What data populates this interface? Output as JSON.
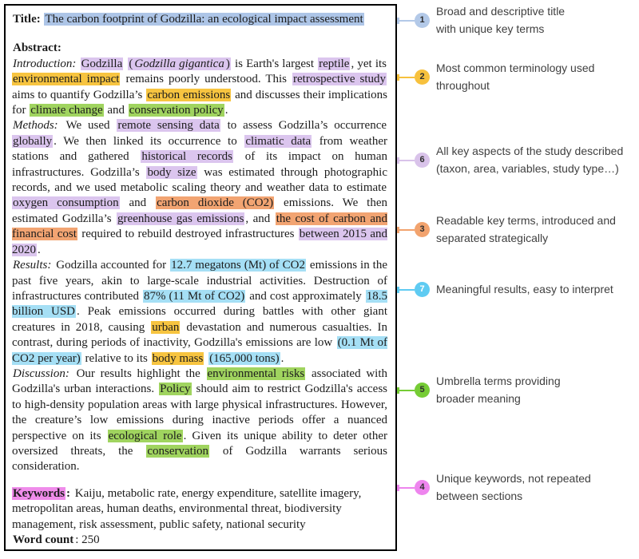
{
  "highlight_colors": {
    "blue": "#adc5e7",
    "purple": "#dbc5ee",
    "yellow": "#f7c440",
    "green": "#a0d45f",
    "orange": "#f2a472",
    "skyblue": "#a5dff5",
    "magenta": "#ef8cea"
  },
  "document": {
    "blocks": [
      {
        "name": "title-line",
        "justify": false,
        "gap": "none",
        "segments": [
          {
            "t": "Title: ",
            "b": true
          },
          {
            "t": "The carbon footprint of Godzilla: an ecological impact assessment",
            "h": "blue"
          }
        ]
      },
      {
        "name": "abstract-heading",
        "justify": false,
        "gap": "md",
        "segments": [
          {
            "t": "Abstract:",
            "b": true
          }
        ]
      },
      {
        "name": "abstract-introduction",
        "gap": "none",
        "segments": [
          {
            "t": "Introduction: ",
            "i": true
          },
          {
            "t": "Godzilla",
            "h": "purple"
          },
          {
            "t": " "
          },
          {
            "t": "(",
            "h": "purple"
          },
          {
            "t": "Godzilla gigantica",
            "h": "purple",
            "i": true
          },
          {
            "t": ")",
            "h": "purple"
          },
          {
            "t": " is Earth's largest "
          },
          {
            "t": "reptile",
            "h": "purple"
          },
          {
            "t": ", yet its "
          },
          {
            "t": "environmental impact",
            "h": "yellow"
          },
          {
            "t": " remains poorly understood. This "
          },
          {
            "t": "retrospective study",
            "h": "purple"
          },
          {
            "t": " aims to quantify Godzilla’s "
          },
          {
            "t": "carbon emissions",
            "h": "yellow"
          },
          {
            "t": " and discusses their implications for "
          },
          {
            "t": "climate change",
            "h": "green"
          },
          {
            "t": " and "
          },
          {
            "t": "conservation policy",
            "h": "green"
          },
          {
            "t": "."
          }
        ]
      },
      {
        "name": "abstract-methods",
        "gap": "none",
        "segments": [
          {
            "t": "Methods: ",
            "i": true
          },
          {
            "t": "We used "
          },
          {
            "t": "remote sensing data",
            "h": "purple"
          },
          {
            "t": " to assess Godzilla’s occurrence "
          },
          {
            "t": "globally",
            "h": "purple"
          },
          {
            "t": ". We then linked its occurrence to "
          },
          {
            "t": "climatic data",
            "h": "purple"
          },
          {
            "t": " from weather stations and gathered "
          },
          {
            "t": "historical records",
            "h": "purple"
          },
          {
            "t": " of its impact on human infrastructures. Godzilla’s "
          },
          {
            "t": "body size",
            "h": "purple"
          },
          {
            "t": " was estimated through photographic records, and we used metabolic scaling theory and weather data to estimate "
          },
          {
            "t": "oxygen consumption",
            "h": "purple"
          },
          {
            "t": " and "
          },
          {
            "t": "carbon dioxide (CO2)",
            "h": "orange"
          },
          {
            "t": " emissions. We then estimated Godzilla’s "
          },
          {
            "t": "greenhouse gas emissions",
            "h": "purple"
          },
          {
            "t": ", and "
          },
          {
            "t": "the cost of carbon and financial cost",
            "h": "orange"
          },
          {
            "t": " required to rebuild destroyed infrastructures "
          },
          {
            "t": "between 2015 and 2020",
            "h": "purple"
          },
          {
            "t": "."
          }
        ]
      },
      {
        "name": "abstract-results",
        "gap": "none",
        "segments": [
          {
            "t": "Results: ",
            "i": true
          },
          {
            "t": "Godzilla accounted for "
          },
          {
            "t": "12.7 megatons (Mt) of CO2",
            "h": "skyblue"
          },
          {
            "t": " emissions in the past five years, akin to large-scale industrial activities. Destruction of infrastructures contributed "
          },
          {
            "t": "87% (11 Mt of CO2)",
            "h": "skyblue"
          },
          {
            "t": " and cost approximately "
          },
          {
            "t": "18.5 billion USD",
            "h": "skyblue"
          },
          {
            "t": ". Peak emissions occurred during battles with other giant creatures in 2018, causing "
          },
          {
            "t": "urban",
            "h": "yellow"
          },
          {
            "t": " devastation and numerous casualties. In contrast, during periods of inactivity, Godzilla's emissions are low "
          },
          {
            "t": "(0.1 Mt of CO2 per year)",
            "h": "skyblue"
          },
          {
            "t": " relative to its "
          },
          {
            "t": "body mass",
            "h": "yellow"
          },
          {
            "t": " "
          },
          {
            "t": "(165,000 tons)",
            "h": "skyblue"
          },
          {
            "t": "."
          }
        ]
      },
      {
        "name": "abstract-discussion",
        "gap": "none",
        "segments": [
          {
            "t": "Discussion: ",
            "i": true
          },
          {
            "t": "Our results highlight the "
          },
          {
            "t": "environmental risks",
            "h": "green"
          },
          {
            "t": " associated with Godzilla's urban interactions. "
          },
          {
            "t": "Policy",
            "h": "green"
          },
          {
            "t": " should aim to restrict Godzilla's access to high-density population areas with large physical infrastructures. However, the creature’s low emissions during inactive periods offer a nuanced perspective on its "
          },
          {
            "t": "ecological role",
            "h": "green"
          },
          {
            "t": ". Given its unique ability to deter other oversized threats, the "
          },
          {
            "t": "conservation",
            "h": "green"
          },
          {
            "t": " of Godzilla warrants serious consideration."
          }
        ]
      },
      {
        "name": "keywords-line",
        "justify": false,
        "gap": "sm",
        "segments": [
          {
            "t": "Keywords",
            "b": true,
            "h": "magenta"
          },
          {
            "t": ": ",
            "b": true
          },
          {
            "t": "Kaiju, metabolic rate, energy expenditure, satellite imagery, metropolitan areas, human deaths, environmental threat, biodiversity management, risk assessment, public safety, national security"
          }
        ]
      },
      {
        "name": "word-count-line",
        "justify": false,
        "gap": "none",
        "segments": [
          {
            "t": "Word count",
            "b": true
          },
          {
            "t": ": 250"
          }
        ]
      }
    ]
  },
  "annotations": [
    {
      "number": "1",
      "color": "#b3c9e8",
      "number_color": "#2e2e2e",
      "lines": [
        "Broad and descriptive title",
        "with unique key terms"
      ]
    },
    {
      "number": "2",
      "color": "#f7c13d",
      "number_color": "#2e2e2e",
      "lines": [
        "Most common terminology used",
        "throughout"
      ]
    },
    {
      "number": "6",
      "color": "#d9c3ea",
      "number_color": "#2e2e2e",
      "lines": [
        "All key aspects of the study described",
        "(taxon, area, variables, study type…)"
      ]
    },
    {
      "number": "3",
      "color": "#f2a36e",
      "number_color": "#2e2e2e",
      "lines": [
        "Readable key terms, introduced and",
        "separated strategically"
      ]
    },
    {
      "number": "7",
      "color": "#5fcbf2",
      "number_color": "#ffffff",
      "lines": [
        "Meaningful results, easy to interpret"
      ]
    },
    {
      "number": "5",
      "color": "#76cc35",
      "number_color": "#2e2e2e",
      "lines": [
        "Umbrella terms providing",
        "broader meaning"
      ]
    },
    {
      "number": "4",
      "color": "#ee85ee",
      "number_color": "#2e2e2e",
      "lines": [
        "Unique keywords, not repeated",
        "between sections"
      ]
    }
  ]
}
